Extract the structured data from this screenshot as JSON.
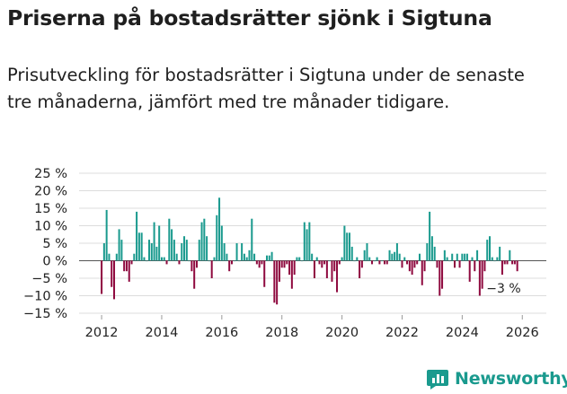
{
  "title": "Priserna på bostadsrätter sjönk i Sigtuna",
  "subtitle": "Prisutveckling för bostadsrätter i Sigtuna under de senaste tre månaderna, jämfört med tre månader tidigare.",
  "brand": {
    "name": "Newsworthy",
    "icon": "chart-logo-icon"
  },
  "colors": {
    "positive": "#1a9a8e",
    "negative": "#8f0a3f",
    "grid": "#dcdcdc",
    "text": "#222222"
  },
  "chart_data": {
    "type": "bar",
    "title": "",
    "xlabel": "",
    "ylabel": "",
    "x_start": 2012.0,
    "x_step": 0.08333,
    "xlim": [
      2011.25,
      2026.8
    ],
    "ylim": [
      -15,
      25
    ],
    "y_ticks": [
      25,
      20,
      15,
      10,
      5,
      0,
      -5,
      -10,
      -15
    ],
    "y_tick_labels": [
      "25 %",
      "20 %",
      "15 %",
      "10 %",
      "5 %",
      "0 %",
      "−5 %",
      "−10 %",
      "−15 %"
    ],
    "x_ticks": [
      2012,
      2014,
      2016,
      2018,
      2020,
      2022,
      2024,
      2026
    ],
    "x_tick_labels": [
      "2012",
      "2014",
      "2016",
      "2018",
      "2020",
      "2022",
      "2024",
      "2026"
    ],
    "values": [
      -9.5,
      5,
      14.5,
      2,
      -7.5,
      -11,
      2,
      9,
      6,
      -3,
      -3,
      -6,
      -1,
      2,
      14,
      8,
      8,
      1,
      0,
      6,
      5,
      11,
      4,
      10,
      1,
      1,
      -1,
      12,
      9,
      6,
      2,
      -1,
      5,
      7,
      6,
      0,
      -3,
      -8,
      -2,
      6,
      11,
      12,
      7,
      0,
      -5,
      1,
      13,
      18,
      10,
      5,
      2,
      -3,
      -1,
      0,
      5,
      0,
      5,
      2,
      1,
      3,
      12,
      2,
      -1,
      -2,
      -1,
      -7.5,
      1.5,
      1.5,
      2.5,
      -12,
      -12.5,
      -6,
      -2,
      -2,
      -1,
      -4,
      -8,
      -4,
      1,
      1,
      0,
      11,
      9,
      11,
      2,
      -5,
      1,
      -1,
      -2,
      -1,
      -5,
      0,
      -6,
      -3,
      -9,
      -1,
      1,
      10,
      8,
      8,
      4,
      0,
      1,
      -5,
      -2,
      3,
      5,
      1,
      -1,
      0,
      1,
      -1,
      0,
      -1,
      -1,
      3,
      2,
      2.5,
      5,
      2,
      -2,
      1,
      -1,
      -3,
      -4,
      -2,
      -1,
      2,
      -7,
      -3,
      5,
      14,
      7,
      4,
      -2,
      -10,
      -8,
      3,
      1,
      0,
      2,
      -2,
      2,
      -2,
      2,
      2,
      2,
      -6,
      1,
      -3,
      3,
      -10,
      -8,
      -3,
      6,
      7,
      1,
      0,
      1,
      4,
      -4,
      -1,
      -1,
      3,
      -1,
      -1,
      -3
    ],
    "annotation": "−3 %"
  }
}
